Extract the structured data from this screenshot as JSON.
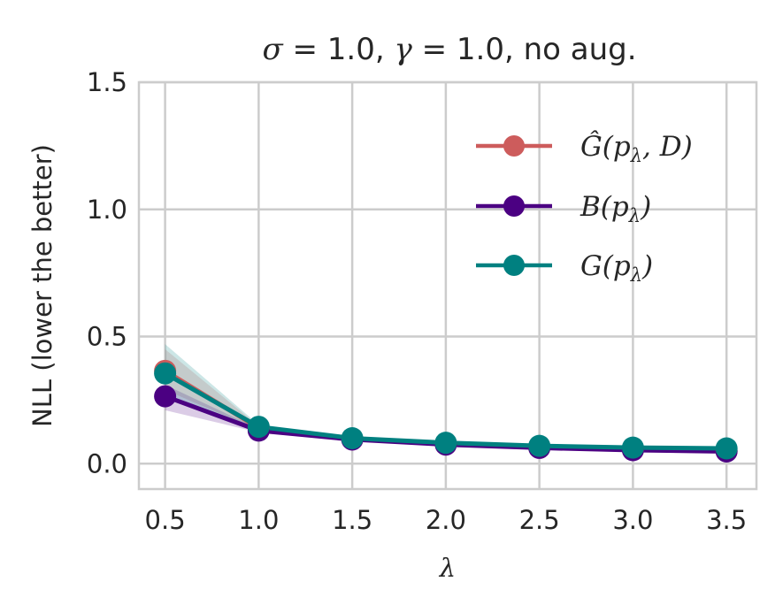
{
  "chart_data": {
    "type": "line",
    "title": "σ = 1.0, γ = 1.0, no aug.",
    "title_parts": {
      "sigma_sym": "σ",
      "sigma_val": " = 1.0, ",
      "gamma_sym": "γ",
      "gamma_val": " = 1.0, no aug."
    },
    "xlabel": "λ",
    "ylabel": "NLL (lower the better)",
    "xlim": [
      0.36,
      3.66
    ],
    "ylim": [
      -0.1,
      1.5
    ],
    "x": [
      0.5,
      1.0,
      1.5,
      2.0,
      2.5,
      3.0,
      3.5
    ],
    "x_ticks": [
      0.5,
      1.0,
      1.5,
      2.0,
      2.5,
      3.0,
      3.5
    ],
    "x_tick_labels": [
      "0.5",
      "1.0",
      "1.5",
      "2.0",
      "2.5",
      "3.0",
      "3.5"
    ],
    "y_ticks": [
      0.0,
      0.5,
      1.0,
      1.5
    ],
    "y_tick_labels": [
      "0.0",
      "0.5",
      "1.0",
      "1.5"
    ],
    "grid": true,
    "legend_position": "top-right",
    "series": [
      {
        "name": "Ĝ(pλ, D)",
        "legend_parts": {
          "fn": "Ĝ",
          "open": "(",
          "p": "p",
          "sub": "λ",
          "rest": ", D)"
        },
        "color": "#cd5c5c",
        "values": [
          0.365,
          0.14,
          0.097,
          0.078,
          0.064,
          0.055,
          0.05
        ],
        "band_lower": [
          0.29,
          0.132,
          0.093,
          0.074,
          0.061,
          0.052,
          0.047
        ],
        "band_upper": [
          0.45,
          0.148,
          0.101,
          0.082,
          0.067,
          0.058,
          0.053
        ]
      },
      {
        "name": "B(pλ)",
        "legend_parts": {
          "fn": "B",
          "open": "(",
          "p": "p",
          "sub": "λ",
          "rest": ")"
        },
        "color": "#4b0082",
        "values": [
          0.265,
          0.13,
          0.095,
          0.075,
          0.062,
          0.053,
          0.048
        ],
        "band_lower": [
          0.21,
          0.123,
          0.091,
          0.071,
          0.059,
          0.05,
          0.045
        ],
        "band_upper": [
          0.31,
          0.137,
          0.099,
          0.079,
          0.065,
          0.056,
          0.051
        ]
      },
      {
        "name": "G(pλ)",
        "legend_parts": {
          "fn": "G",
          "open": "(",
          "p": "p",
          "sub": "λ",
          "rest": ")"
        },
        "color": "#008080",
        "values": [
          0.355,
          0.145,
          0.1,
          0.082,
          0.07,
          0.063,
          0.06
        ],
        "band_lower": [
          0.27,
          0.137,
          0.096,
          0.078,
          0.067,
          0.06,
          0.057
        ],
        "band_upper": [
          0.47,
          0.153,
          0.104,
          0.086,
          0.073,
          0.066,
          0.063
        ]
      }
    ]
  }
}
